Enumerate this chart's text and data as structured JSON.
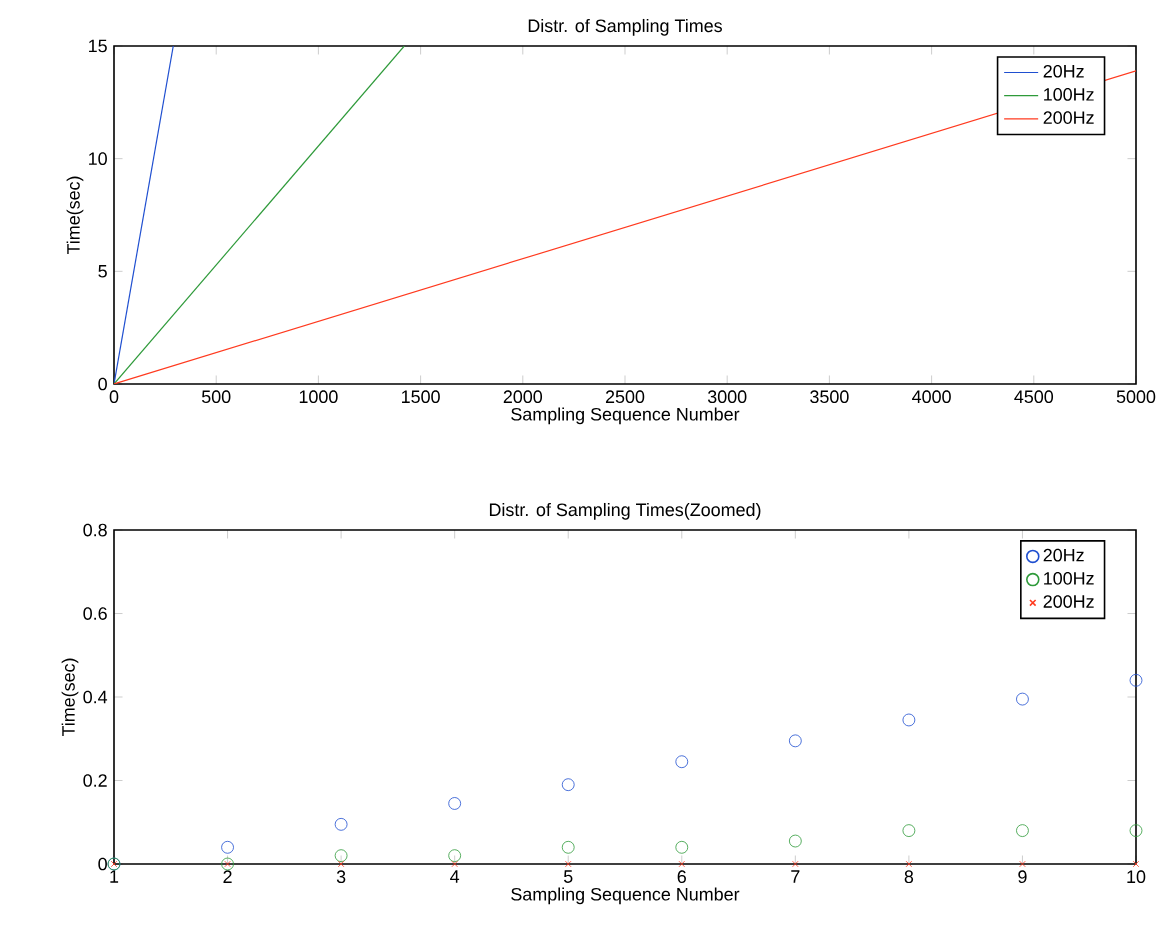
{
  "chart_data": [
    {
      "type": "line",
      "title": "Distr. of Sampling Times",
      "xlabel": "Sampling Sequence Number",
      "ylabel": "Time(sec)",
      "xlim": [
        0,
        5000
      ],
      "ylim": [
        0,
        15
      ],
      "xticks": [
        0,
        500,
        1000,
        1500,
        2000,
        2500,
        3000,
        3500,
        4000,
        4500,
        5000
      ],
      "yticks": [
        0,
        5,
        10,
        15
      ],
      "grid": false,
      "legend": "top right",
      "series": [
        {
          "name": "20Hz",
          "color": "#1f4fd0",
          "x": [
            0,
            290
          ],
          "values": [
            0,
            15
          ]
        },
        {
          "name": "100Hz",
          "color": "#2e9a3a",
          "x": [
            0,
            1420
          ],
          "values": [
            0,
            15
          ]
        },
        {
          "name": "200Hz",
          "color": "#ff3a1f",
          "x": [
            0,
            5000
          ],
          "values": [
            0,
            13.9
          ]
        }
      ]
    },
    {
      "type": "scatter",
      "title": "Distr. of Sampling Times(Zoomed)",
      "xlabel": "Sampling Sequence Number",
      "ylabel": "Time(sec)",
      "xlim": [
        1,
        10
      ],
      "ylim": [
        0,
        0.8
      ],
      "xticks": [
        1,
        2,
        3,
        4,
        5,
        6,
        7,
        8,
        9,
        10
      ],
      "yticks": [
        0,
        0.2,
        0.4,
        0.6,
        0.8
      ],
      "grid": false,
      "legend": "top right",
      "x": [
        1,
        2,
        3,
        4,
        5,
        6,
        7,
        8,
        9,
        10
      ],
      "series": [
        {
          "name": "20Hz",
          "color": "#1f4fd0",
          "marker": "circle",
          "values": [
            0,
            0.04,
            0.095,
            0.145,
            0.19,
            0.245,
            0.295,
            0.345,
            0.395,
            0.44
          ]
        },
        {
          "name": "100Hz",
          "color": "#2e9a3a",
          "marker": "circle",
          "values": [
            0,
            0,
            0.02,
            0.02,
            0.04,
            0.04,
            0.055,
            0.08,
            0.08,
            0.08
          ]
        },
        {
          "name": "200Hz",
          "color": "#ff3a1f",
          "marker": "cross",
          "values": [
            0,
            0,
            0,
            0,
            0,
            0,
            0,
            0,
            0,
            0
          ]
        }
      ]
    }
  ]
}
